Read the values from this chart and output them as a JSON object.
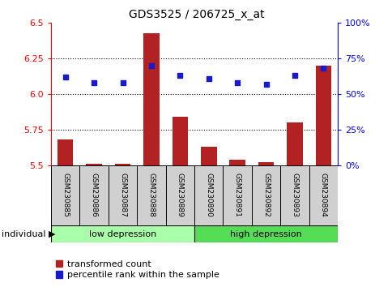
{
  "title": "GDS3525 / 206725_x_at",
  "samples": [
    "GSM230885",
    "GSM230886",
    "GSM230887",
    "GSM230888",
    "GSM230889",
    "GSM230890",
    "GSM230891",
    "GSM230892",
    "GSM230893",
    "GSM230894"
  ],
  "transformed_count": [
    5.68,
    5.51,
    5.51,
    6.43,
    5.84,
    5.63,
    5.54,
    5.52,
    5.8,
    6.2
  ],
  "percentile_rank": [
    62,
    58,
    58,
    70,
    63,
    61,
    58,
    57,
    63,
    68
  ],
  "ylim_left": [
    5.5,
    6.5
  ],
  "ylim_right": [
    0,
    100
  ],
  "yticks_left": [
    5.5,
    5.75,
    6.0,
    6.25,
    6.5
  ],
  "yticks_right": [
    0,
    25,
    50,
    75,
    100
  ],
  "ytick_labels_right": [
    "0%",
    "25%",
    "50%",
    "75%",
    "100%"
  ],
  "bar_color": "#b22222",
  "dot_color": "#1a1acd",
  "group1_label": "low depression",
  "group2_label": "high depression",
  "group1_indices": [
    0,
    1,
    2,
    3,
    4
  ],
  "group2_indices": [
    5,
    6,
    7,
    8,
    9
  ],
  "group1_bg": "#aaffaa",
  "group2_bg": "#55dd55",
  "tick_label_bg": "#d0d0d0",
  "legend_red_label": "transformed count",
  "legend_blue_label": "percentile rank within the sample",
  "individual_label": "individual",
  "bar_bottom": 5.5,
  "grid_lines": [
    5.75,
    6.0,
    6.25
  ],
  "title_fontsize": 10,
  "axis_fontsize": 8,
  "sample_fontsize": 6.5,
  "group_fontsize": 8,
  "legend_fontsize": 8
}
